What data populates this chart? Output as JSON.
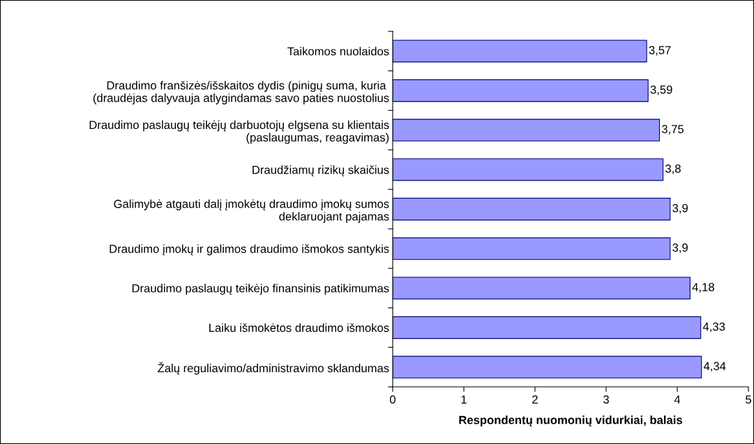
{
  "chart_data": {
    "type": "bar",
    "orientation": "horizontal",
    "xlabel": "Respondentų nuomonių vidurkiai, balais",
    "categories": [
      "Taikomos nuolaidos",
      "Draudimo franšizės/išskaitos dydis (pinigų suma, kuria \n(draudėjas dalyvauja atlygindamas savo paties nuostolius",
      "Draudimo paslaugų teikėjų darbuotojų elgsena su klientais\n(paslaugumas, reagavimas)",
      "Draudžiamų rizikų skaičius",
      "Galimybė atgauti dalį įmokėtų draudimo įmokų sumos\ndeklaruojant pajamas",
      "Draudimo įmokų ir galimos draudimo išmokos santykis",
      "Draudimo paslaugų teikėjo finansinis patikimumas",
      "Laiku išmokėtos draudimo išmokos",
      "Žalų reguliavimo/administravimo sklandumas"
    ],
    "values": [
      3.57,
      3.59,
      3.75,
      3.8,
      3.9,
      3.9,
      4.18,
      4.33,
      4.34
    ],
    "value_labels": [
      "3,57",
      "3,59",
      "3,75",
      "3,8",
      "3,9",
      "3,9",
      "4,18",
      "4,33",
      "4,34"
    ],
    "color": "#9999ff",
    "xlim": [
      0,
      5
    ],
    "xticks": [
      0,
      1,
      2,
      3,
      4,
      5
    ],
    "grid": false,
    "legend": false
  }
}
